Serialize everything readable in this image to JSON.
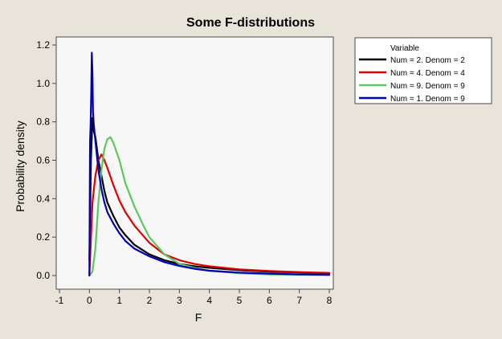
{
  "chart_data": {
    "type": "line",
    "title": "Some F-distributions",
    "xlabel": "F",
    "ylabel": "Probability density",
    "xlim": [
      -1,
      8
    ],
    "ylim": [
      0,
      1.2
    ],
    "xticks": [
      -1,
      0,
      1,
      2,
      3,
      4,
      5,
      6,
      7,
      8
    ],
    "yticks": [
      0.0,
      0.2,
      0.4,
      0.6,
      0.8,
      1.0,
      1.2
    ],
    "ytick_labels": [
      "0.0",
      "0.2",
      "0.4",
      "0.6",
      "0.8",
      "1.0",
      "1.2"
    ],
    "grid": false,
    "legend_position": "top-right, outside plot",
    "legend_title": "Variable",
    "series": [
      {
        "name": "Num = 2. Denom = 2",
        "color": "#000000",
        "x": [
          0.0,
          0.05,
          0.1,
          0.15,
          0.2,
          0.3,
          0.4,
          0.5,
          0.6,
          0.8,
          1.0,
          1.2,
          1.5,
          2.0,
          2.5,
          3.0,
          3.5,
          4.0,
          5.0,
          6.0,
          7.0,
          8.0
        ],
        "y": [
          0.08,
          0.6,
          0.82,
          0.75,
          0.72,
          0.6,
          0.52,
          0.44,
          0.38,
          0.31,
          0.25,
          0.21,
          0.16,
          0.11,
          0.08,
          0.06,
          0.048,
          0.04,
          0.028,
          0.02,
          0.016,
          0.012
        ]
      },
      {
        "name": "Num = 4. Denom = 4",
        "color": "#e00000",
        "x": [
          0.0,
          0.05,
          0.1,
          0.2,
          0.3,
          0.4,
          0.5,
          0.6,
          0.8,
          1.0,
          1.2,
          1.5,
          2.0,
          2.5,
          3.0,
          3.5,
          4.0,
          5.0,
          6.0,
          7.0,
          8.0
        ],
        "y": [
          0.0,
          0.19,
          0.38,
          0.52,
          0.6,
          0.63,
          0.6,
          0.56,
          0.47,
          0.39,
          0.33,
          0.26,
          0.17,
          0.11,
          0.08,
          0.06,
          0.048,
          0.032,
          0.024,
          0.018,
          0.014
        ]
      },
      {
        "name": "Num = 9. Denom = 9",
        "color": "#5dc85d",
        "x": [
          0.0,
          0.1,
          0.2,
          0.3,
          0.4,
          0.5,
          0.6,
          0.7,
          0.8,
          1.0,
          1.2,
          1.5,
          1.8,
          2.0,
          2.5,
          3.0,
          3.5,
          4.0,
          5.0,
          6.0,
          7.0,
          8.0
        ],
        "y": [
          0.0,
          0.02,
          0.14,
          0.38,
          0.55,
          0.66,
          0.71,
          0.72,
          0.69,
          0.6,
          0.48,
          0.36,
          0.26,
          0.2,
          0.11,
          0.06,
          0.04,
          0.025,
          0.012,
          0.006,
          0.004,
          0.002
        ]
      },
      {
        "name": "Num = 1. Denom = 9",
        "color": "#0000b4",
        "x": [
          0.0,
          0.02,
          0.04,
          0.06,
          0.08,
          0.1,
          0.12,
          0.15,
          0.2,
          0.3,
          0.4,
          0.5,
          0.6,
          0.8,
          1.0,
          1.2,
          1.5,
          2.0,
          2.5,
          3.0,
          3.5,
          4.0,
          5.0,
          6.0,
          7.0,
          8.0
        ],
        "y": [
          0.0,
          0.7,
          0.78,
          0.95,
          1.16,
          1.05,
          0.85,
          0.78,
          0.7,
          0.55,
          0.45,
          0.38,
          0.33,
          0.27,
          0.22,
          0.18,
          0.14,
          0.1,
          0.07,
          0.05,
          0.035,
          0.025,
          0.015,
          0.01,
          0.006,
          0.004
        ]
      }
    ]
  }
}
